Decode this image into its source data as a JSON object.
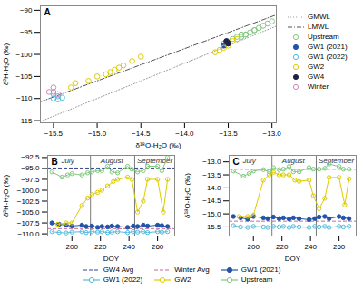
{
  "chart_data": [
    {
      "type": "scatter",
      "title": "A",
      "x_label": "δ¹⁸O-H₂O (‰)",
      "y_label": "δ²H-H₂O (‰)",
      "xlim": [
        -15.65,
        -12.95
      ],
      "ylim": [
        -115.5,
        -89.0
      ],
      "xticks": [
        -15.5,
        {
          "value": -15,
          "label": "−15.0"
        },
        -14.5,
        {
          "value": -14,
          "label": "−14.0"
        },
        -13.5,
        {
          "value": -13,
          "label": "−13.0"
        }
      ],
      "yticks": [
        -90,
        -95,
        -100,
        -105,
        -110,
        -115
      ],
      "legend": "right",
      "series": [
        {
          "name": "GMWL",
          "type": "line",
          "color": "#999999",
          "line_style": "dotted",
          "x": [
            -15.65,
            -12.95
          ],
          "values": [
            -115.2,
            -93.6
          ]
        },
        {
          "name": "LMWL",
          "type": "line",
          "color": "#555555",
          "line_style": "dashdot",
          "x": [
            -15.65,
            -12.95
          ],
          "values": [
            -110.745,
            -91.035
          ]
        },
        {
          "name": "Upstream",
          "color": "#82c882",
          "marker": "circle-open",
          "x": [
            -13.55,
            -13.45,
            -13.4,
            -13.35,
            -13.3,
            -13.25,
            -13.2,
            -13.15,
            -13.1,
            -13.05,
            -13.0,
            -13.35,
            -13.3,
            -13.2
          ],
          "values": [
            -97.5,
            -96.5,
            -96.0,
            -95.5,
            -95.5,
            -95.0,
            -94.5,
            -94.0,
            -93.5,
            -93.0,
            -92.5,
            -96.0,
            -95.5,
            -94.5
          ]
        },
        {
          "name": "GW1 (2021)",
          "color": "#2255aa",
          "marker": "circle",
          "x": [
            -13.5,
            -13.55,
            -13.52
          ],
          "values": [
            -97.5,
            -98.0,
            -97.0
          ]
        },
        {
          "name": "GW1 (2022)",
          "color": "#55bbdd",
          "marker": "circle-open",
          "x": [
            -15.45,
            -15.5,
            -15.5,
            -15.45,
            -15.4
          ],
          "values": [
            -109.5,
            -110.0,
            -109.0,
            -110.2,
            -109.8
          ]
        },
        {
          "name": "GW2",
          "color": "#ddcc00",
          "marker": "circle-open",
          "x": [
            -15.3,
            -15.25,
            -15.1,
            -15.0,
            -14.9,
            -14.85,
            -14.8,
            -14.75,
            -14.7,
            -14.6,
            -14.5,
            -13.65,
            -13.6,
            -13.55,
            -13.5,
            -13.45,
            -13.4
          ],
          "values": [
            -107.5,
            -106.5,
            -106.0,
            -105.0,
            -104.5,
            -104.0,
            -103.5,
            -103.0,
            -102.5,
            -101.5,
            -100.5,
            -99.5,
            -99.0,
            -98.5,
            -98.0,
            -97.0,
            -96.5
          ]
        },
        {
          "name": "GW4",
          "color": "#222244",
          "marker": "circle",
          "x": [
            -13.5,
            -13.52
          ],
          "values": [
            -97.5,
            -97.0
          ]
        },
        {
          "name": "Winter",
          "color": "#cc88bb",
          "marker": "circle-open",
          "x": [
            -15.55,
            -15.5,
            -15.5,
            -15.45
          ],
          "values": [
            -108.5,
            -107.5,
            -108.5,
            -109.0
          ]
        }
      ]
    },
    {
      "type": "line",
      "title": "B",
      "x_label": "DOY",
      "y_label": "δ²H-H₂O (‰)",
      "xlim": [
        183,
        272
      ],
      "ylim": [
        -110.5,
        -92.0
      ],
      "xticks": [
        200,
        220,
        240,
        260
      ],
      "yticks": [
        {
          "value": -110,
          "label": "−110.0"
        },
        -107.5,
        {
          "value": -105,
          "label": "−105.0"
        },
        -102.5,
        {
          "value": -100,
          "label": "−100.0"
        },
        -97.5,
        {
          "value": -95,
          "label": "−95.0"
        },
        -92.5
      ],
      "vlines": [
        213,
        244
      ],
      "annotations": [
        {
          "text": "July",
          "x": 197
        },
        {
          "text": "August",
          "x": 228
        },
        {
          "text": "September",
          "x": 258
        }
      ],
      "legend": "bottom",
      "series": [
        {
          "name": "GW4 Avg",
          "type": "hline",
          "color": "#334488",
          "line_style": "dashed",
          "values": [
            -94.9
          ]
        },
        {
          "name": "Winter Avg",
          "type": "hline",
          "color": "#cc6699",
          "line_style": "dashed",
          "values": [
            -108.8
          ]
        },
        {
          "name": "GW1 (2021)",
          "color": "#2255aa",
          "marker": "circle",
          "x": [
            186,
            191,
            196,
            200,
            207,
            210,
            214,
            218,
            221,
            225,
            228,
            232,
            239,
            243,
            246,
            250,
            253,
            260,
            263,
            267
          ],
          "values": [
            -107.5,
            -107.8,
            -108.0,
            -108.2,
            -108.0,
            -108.3,
            -108.2,
            -108.5,
            -108.3,
            -108.4,
            -108.2,
            -108.3,
            -108.5,
            -108.2,
            -108.3,
            -108.0,
            -108.2,
            -108.0,
            -108.1,
            -108.3
          ]
        },
        {
          "name": "GW1 (2022)",
          "color": "#55bbdd",
          "marker": "circle-open",
          "x": [
            186,
            191,
            196,
            200,
            207,
            210,
            214,
            218,
            221,
            225,
            228,
            232,
            239,
            243,
            246,
            250,
            253,
            260,
            263,
            267
          ],
          "values": [
            -109.5,
            -109.7,
            -109.8,
            -109.6,
            -109.5,
            -109.7,
            -109.5,
            -109.6,
            -109.5,
            -109.7,
            -109.6,
            -109.5,
            -109.7,
            -109.5,
            -109.6,
            -109.5,
            -109.7,
            -109.5,
            -109.6,
            -109.5
          ]
        },
        {
          "name": "GW2",
          "color": "#ddcc00",
          "marker": "circle-open",
          "x": [
            190,
            196,
            200,
            207,
            211,
            214,
            218,
            221,
            225,
            229,
            232,
            239,
            242,
            246,
            250,
            253,
            260,
            264,
            267
          ],
          "values": [
            -107.8,
            -107.5,
            -107.5,
            -103.5,
            -101.8,
            -101.0,
            -100.5,
            -100.0,
            -99.0,
            -98.0,
            -97.5,
            -97.0,
            -97.5,
            -105.0,
            -102.5,
            -97.5,
            -97.5,
            -105.0,
            -97.5
          ]
        },
        {
          "name": "Upstream",
          "color": "#82c882",
          "marker": "circle-open",
          "x": [
            186,
            193,
            197,
            200,
            207,
            211,
            214,
            218,
            221,
            225,
            228,
            232,
            239,
            242,
            246,
            250,
            253,
            260,
            263,
            267
          ],
          "values": [
            -95.8,
            -97.0,
            -96.5,
            -96.2,
            -96.5,
            -96.0,
            -95.8,
            -95.5,
            -95.5,
            -94.5,
            -95.8,
            -96.0,
            -94.5,
            -95.2,
            -95.8,
            -95.5,
            -94.5,
            -94.5,
            -95.5,
            -92.5
          ]
        }
      ]
    },
    {
      "type": "line",
      "title": "C",
      "x_label": "DOY",
      "y_label": "δ¹⁸O-H₂O (‰)",
      "xlim": [
        183,
        272
      ],
      "ylim": [
        -15.85,
        -12.75
      ],
      "xticks": [
        200,
        220,
        240,
        260
      ],
      "yticks": [
        -15.5,
        {
          "value": -15,
          "label": "−15.0"
        },
        -14.5,
        {
          "value": -14,
          "label": "−14.0"
        },
        -13.5,
        {
          "value": -13,
          "label": "−13.0"
        }
      ],
      "vlines": [
        213,
        244
      ],
      "annotations": [
        {
          "text": "July",
          "x": 197
        },
        {
          "text": "August",
          "x": 228
        },
        {
          "text": "September",
          "x": 258
        }
      ],
      "legend": "bottom",
      "series": [
        {
          "name": "GW4 Avg",
          "type": "hline",
          "color": "#334488",
          "line_style": "dashed",
          "values": [
            -13.28
          ]
        },
        {
          "name": "Winter Avg",
          "type": "hline",
          "color": "#cc6699",
          "line_style": "dashed",
          "values": [
            -15.28
          ]
        },
        {
          "name": "GW1 (2021)",
          "color": "#2255aa",
          "marker": "circle",
          "x": [
            186,
            191,
            196,
            200,
            207,
            210,
            214,
            218,
            221,
            225,
            228,
            232,
            239,
            243,
            246,
            250,
            253,
            260,
            263,
            267
          ],
          "values": [
            -15.1,
            -15.15,
            -15.2,
            -15.1,
            -15.15,
            -15.18,
            -15.12,
            -15.18,
            -15.15,
            -15.2,
            -15.15,
            -15.18,
            -15.22,
            -15.18,
            -15.12,
            -15.1,
            -15.18,
            -15.1,
            -15.15,
            -15.18
          ]
        },
        {
          "name": "GW1 (2022)",
          "color": "#55bbdd",
          "marker": "circle-open",
          "x": [
            186,
            191,
            196,
            200,
            207,
            210,
            214,
            218,
            221,
            225,
            228,
            232,
            239,
            243,
            246,
            250,
            253,
            260,
            263,
            267
          ],
          "values": [
            -15.45,
            -15.5,
            -15.52,
            -15.48,
            -15.5,
            -15.52,
            -15.48,
            -15.5,
            -15.48,
            -15.52,
            -15.48,
            -15.5,
            -15.52,
            -15.48,
            -15.5,
            -15.48,
            -15.52,
            -15.48,
            -15.5,
            -15.48
          ]
        },
        {
          "name": "GW2",
          "color": "#ddcc00",
          "marker": "circle-open",
          "x": [
            190,
            196,
            200,
            207,
            211,
            214,
            218,
            221,
            225,
            229,
            232,
            239,
            242,
            246,
            250,
            253,
            260,
            264,
            267
          ],
          "values": [
            -15.1,
            -15.1,
            -15.05,
            -13.7,
            -13.5,
            -13.4,
            -13.5,
            -13.5,
            -13.5,
            -13.7,
            -13.75,
            -13.7,
            -14.3,
            -14.8,
            -14.4,
            -13.6,
            -13.6,
            -14.65,
            -13.65
          ]
        },
        {
          "name": "Upstream",
          "color": "#82c882",
          "marker": "circle-open",
          "x": [
            186,
            193,
            197,
            200,
            207,
            211,
            214,
            218,
            221,
            225,
            228,
            232,
            239,
            242,
            246,
            250,
            253,
            260,
            263,
            267
          ],
          "values": [
            -13.35,
            -13.55,
            -13.45,
            -13.35,
            -13.3,
            -13.38,
            -13.22,
            -13.3,
            -13.28,
            -13.18,
            -13.38,
            -13.38,
            -13.22,
            -13.28,
            -13.28,
            -13.25,
            -13.08,
            -13.18,
            -13.28,
            -13.28
          ]
        }
      ]
    }
  ]
}
